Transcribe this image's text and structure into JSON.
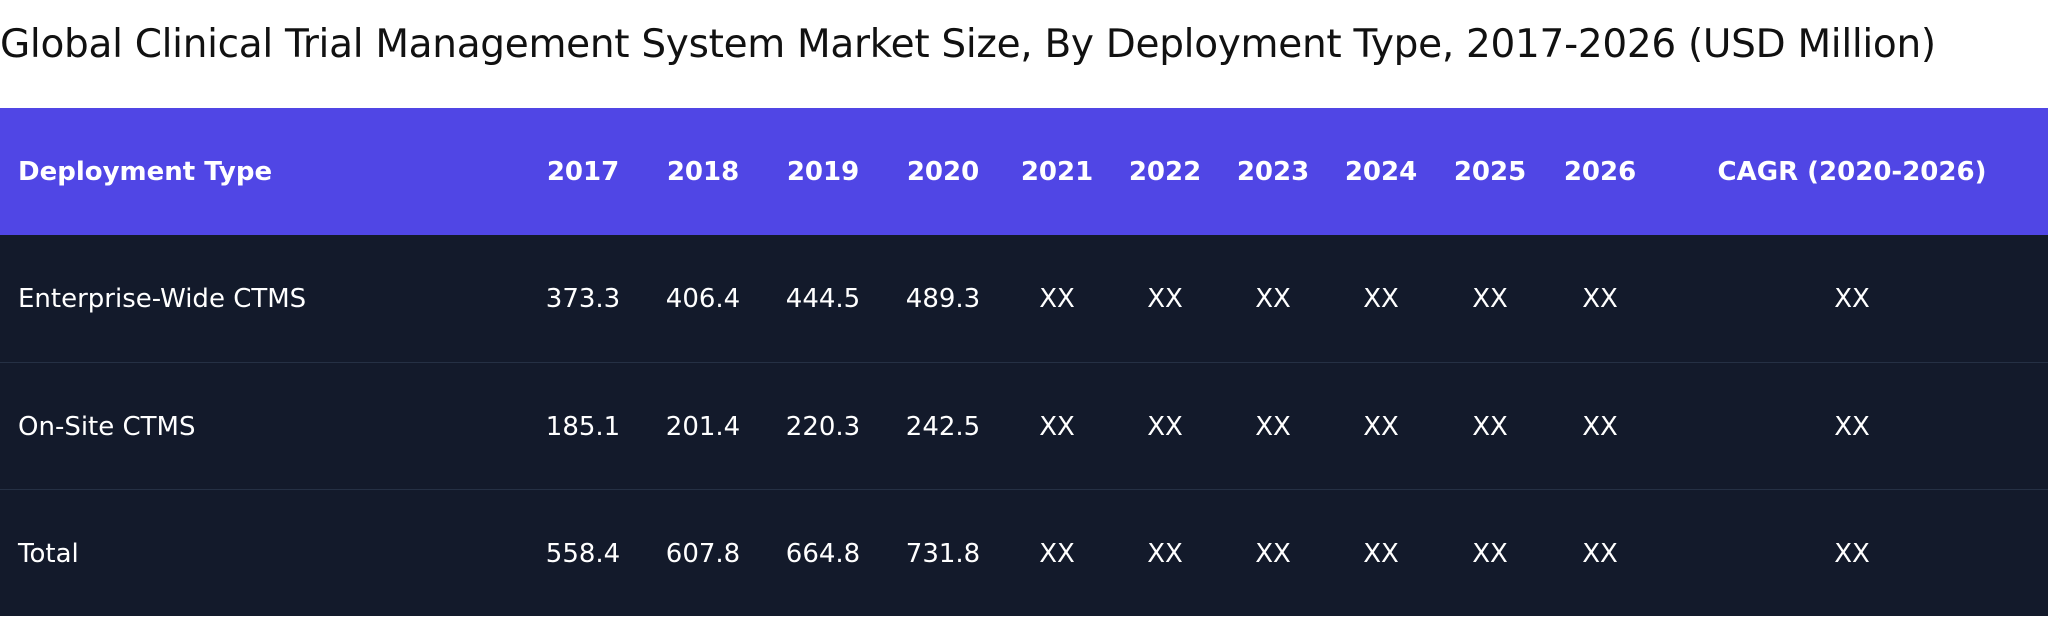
{
  "title": "Global Clinical Trial Management System Market Size, By Deployment Type, 2017-2026 (USD Million)",
  "table": {
    "header": [
      "Deployment Type",
      "2017",
      "2018",
      "2019",
      "2020",
      "2021",
      "2022",
      "2023",
      "2024",
      "2025",
      "2026",
      "CAGR (2020-2026)"
    ],
    "rows": [
      [
        "Enterprise-Wide CTMS",
        "373.3",
        "406.4",
        "444.5",
        "489.3",
        "XX",
        "XX",
        "XX",
        "XX",
        "XX",
        "XX",
        "XX"
      ],
      [
        "On-Site CTMS",
        "185.1",
        "201.4",
        "220.3",
        "242.5",
        "XX",
        "XX",
        "XX",
        "XX",
        "XX",
        "XX",
        "XX"
      ],
      [
        "Total",
        "558.4",
        "607.8",
        "664.8",
        "731.8",
        "XX",
        "XX",
        "XX",
        "XX",
        "XX",
        "XX",
        "XX"
      ]
    ]
  }
}
